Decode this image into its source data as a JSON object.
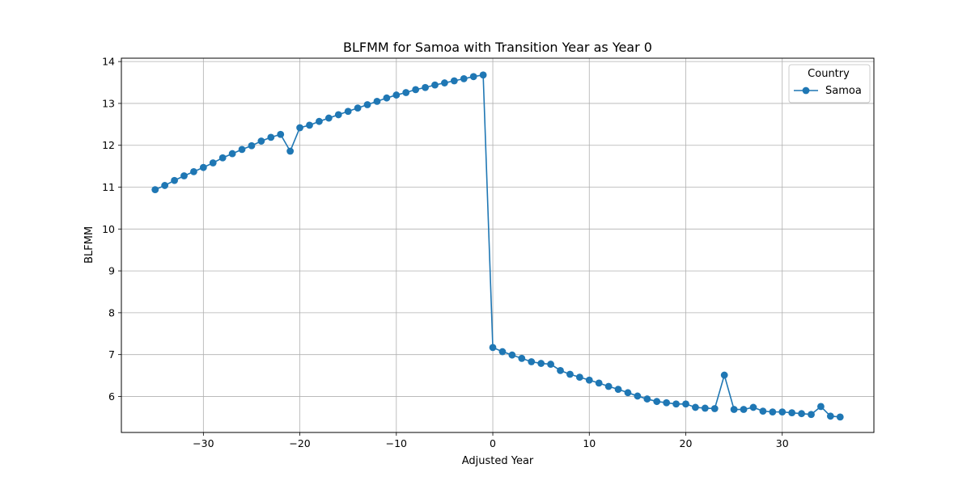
{
  "chart_data": {
    "type": "line",
    "title": "BLFMM for Samoa with Transition Year as Year 0",
    "xlabel": "Adjusted Year",
    "ylabel": "BLFMM",
    "xlim": [
      -38.5,
      39.5
    ],
    "ylim": [
      5.14,
      14.08
    ],
    "xticks": [
      -30,
      -20,
      -10,
      0,
      10,
      20,
      30
    ],
    "yticks": [
      6,
      7,
      8,
      9,
      10,
      11,
      12,
      13,
      14
    ],
    "grid": true,
    "legend": {
      "title": "Country",
      "placement": "top-right"
    },
    "series": [
      {
        "name": "Samoa",
        "color": "#1f77b4",
        "marker": "circle",
        "x": [
          -35,
          -34,
          -33,
          -32,
          -31,
          -30,
          -29,
          -28,
          -27,
          -26,
          -25,
          -24,
          -23,
          -22,
          -21,
          -20,
          -19,
          -18,
          -17,
          -16,
          -15,
          -14,
          -13,
          -12,
          -11,
          -10,
          -9,
          -8,
          -7,
          -6,
          -5,
          -4,
          -3,
          -2,
          -1,
          0,
          1,
          2,
          3,
          4,
          5,
          6,
          7,
          8,
          9,
          10,
          11,
          12,
          13,
          14,
          15,
          16,
          17,
          18,
          19,
          20,
          21,
          22,
          23,
          24,
          25,
          26,
          27,
          28,
          29,
          30,
          31,
          32,
          33,
          34,
          35,
          36
        ],
        "y": [
          10.94,
          11.04,
          11.16,
          11.27,
          11.37,
          11.47,
          11.58,
          11.7,
          11.8,
          11.9,
          11.99,
          12.1,
          12.19,
          12.26,
          11.86,
          12.42,
          12.48,
          12.57,
          12.65,
          12.73,
          12.81,
          12.89,
          12.97,
          13.05,
          13.13,
          13.2,
          13.26,
          13.33,
          13.38,
          13.44,
          13.49,
          13.54,
          13.59,
          13.64,
          13.68,
          7.17,
          7.07,
          6.99,
          6.91,
          6.83,
          6.79,
          6.77,
          6.62,
          6.53,
          6.46,
          6.39,
          6.32,
          6.24,
          6.17,
          6.09,
          6.01,
          5.94,
          5.88,
          5.85,
          5.82,
          5.82,
          5.74,
          5.72,
          5.71,
          6.51,
          5.69,
          5.69,
          5.74,
          5.65,
          5.63,
          5.63,
          5.61,
          5.59,
          5.57,
          5.76,
          5.53,
          5.51
        ]
      }
    ]
  }
}
